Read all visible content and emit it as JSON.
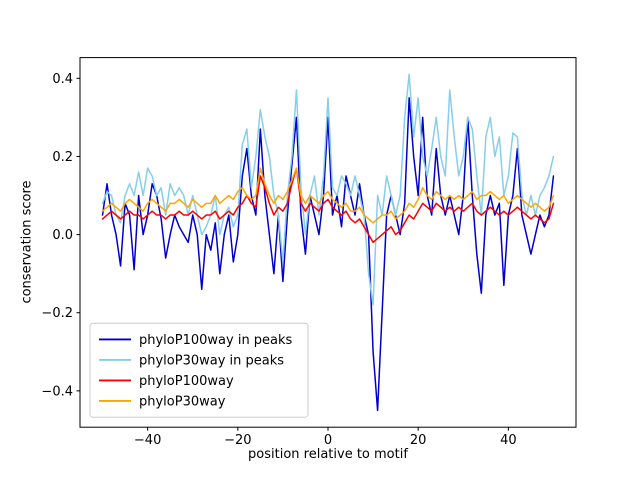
{
  "chart_data": {
    "type": "line",
    "title": "",
    "xlabel": "position relative to motif",
    "ylabel": "conservation score",
    "xlim": [
      -55,
      55
    ],
    "ylim": [
      -0.493,
      0.453
    ],
    "grid": false,
    "legend_position": "lower left",
    "xticks": [
      -40,
      -20,
      0,
      20,
      40
    ],
    "xtick_labels": [
      "−40",
      "−20",
      "0",
      "20",
      "40"
    ],
    "yticks": [
      -0.4,
      -0.2,
      0.0,
      0.2,
      0.4
    ],
    "ytick_labels": [
      "−0.4",
      "−0.2",
      "0.0",
      "0.2",
      "0.4"
    ],
    "x": [
      -50,
      -49,
      -48,
      -47,
      -46,
      -45,
      -44,
      -43,
      -42,
      -41,
      -40,
      -39,
      -38,
      -37,
      -36,
      -35,
      -34,
      -33,
      -32,
      -31,
      -30,
      -29,
      -28,
      -27,
      -26,
      -25,
      -24,
      -23,
      -22,
      -21,
      -20,
      -19,
      -18,
      -17,
      -16,
      -15,
      -14,
      -13,
      -12,
      -11,
      -10,
      -9,
      -8,
      -7,
      -6,
      -5,
      -4,
      -3,
      -2,
      -1,
      0,
      1,
      2,
      3,
      4,
      5,
      6,
      7,
      8,
      9,
      10,
      11,
      12,
      13,
      14,
      15,
      16,
      17,
      18,
      19,
      20,
      21,
      22,
      23,
      24,
      25,
      26,
      27,
      28,
      29,
      30,
      31,
      32,
      33,
      34,
      35,
      36,
      37,
      38,
      39,
      40,
      41,
      42,
      43,
      44,
      45,
      46,
      47,
      48,
      49,
      50
    ],
    "series": [
      {
        "name": "phyloP100way in peaks",
        "color": "#0000cd",
        "values": [
          0.05,
          0.13,
          0.05,
          0.0,
          -0.08,
          0.08,
          0.05,
          -0.09,
          0.1,
          0.0,
          0.05,
          0.13,
          0.1,
          0.04,
          -0.06,
          0.0,
          0.05,
          0.02,
          0.0,
          -0.02,
          0.05,
          0.0,
          -0.14,
          0.0,
          -0.04,
          0.03,
          -0.1,
          0.0,
          0.05,
          -0.07,
          0.0,
          0.15,
          0.22,
          0.1,
          0.05,
          0.27,
          0.1,
          0.0,
          -0.1,
          0.05,
          -0.12,
          0.05,
          0.18,
          0.3,
          0.05,
          -0.05,
          0.1,
          0.05,
          0.0,
          0.1,
          0.3,
          0.05,
          0.1,
          0.02,
          0.15,
          0.1,
          0.05,
          0.13,
          0.05,
          0.0,
          -0.3,
          -0.45,
          -0.2,
          0.05,
          0.1,
          0.05,
          0.0,
          0.08,
          0.35,
          0.2,
          0.1,
          0.3,
          0.1,
          0.05,
          0.22,
          0.1,
          0.05,
          0.1,
          0.05,
          0.0,
          0.1,
          0.3,
          0.1,
          -0.05,
          -0.15,
          0.05,
          0.1,
          0.05,
          0.08,
          -0.13,
          0.05,
          0.1,
          0.22,
          0.05,
          0.0,
          -0.05,
          0.0,
          0.05,
          0.02,
          0.05,
          0.15
        ]
      },
      {
        "name": "phyloP30way in peaks",
        "color": "#87ceeb",
        "values": [
          0.08,
          0.11,
          0.1,
          0.05,
          0.03,
          0.1,
          0.13,
          0.1,
          0.16,
          0.1,
          0.17,
          0.15,
          0.1,
          0.12,
          0.05,
          0.13,
          0.1,
          0.12,
          0.1,
          0.05,
          0.1,
          0.05,
          0.0,
          0.02,
          0.05,
          0.1,
          0.0,
          0.05,
          0.07,
          0.02,
          0.05,
          0.23,
          0.27,
          0.12,
          0.2,
          0.32,
          0.25,
          0.2,
          0.1,
          0.05,
          -0.07,
          0.1,
          0.2,
          0.37,
          0.12,
          0.0,
          0.1,
          0.15,
          0.05,
          0.15,
          0.35,
          0.12,
          0.1,
          0.15,
          0.13,
          0.1,
          0.15,
          0.1,
          0.05,
          -0.1,
          -0.18,
          0.1,
          0.05,
          0.15,
          0.1,
          0.05,
          0.1,
          0.3,
          0.41,
          0.25,
          0.35,
          0.2,
          0.15,
          0.22,
          0.3,
          0.2,
          0.15,
          0.37,
          0.25,
          0.15,
          0.2,
          0.3,
          0.27,
          0.15,
          0.05,
          0.25,
          0.3,
          0.2,
          0.25,
          0.1,
          0.15,
          0.26,
          0.25,
          0.1,
          0.05,
          0.1,
          0.05,
          0.1,
          0.12,
          0.15,
          0.2
        ]
      },
      {
        "name": "phyloP100way",
        "color": "#ff0000",
        "values": [
          0.04,
          0.05,
          0.06,
          0.05,
          0.04,
          0.05,
          0.06,
          0.05,
          0.05,
          0.04,
          0.05,
          0.06,
          0.05,
          0.05,
          0.04,
          0.05,
          0.05,
          0.06,
          0.05,
          0.05,
          0.06,
          0.05,
          0.04,
          0.05,
          0.05,
          0.06,
          0.04,
          0.05,
          0.06,
          0.05,
          0.07,
          0.08,
          0.1,
          0.08,
          0.07,
          0.15,
          0.12,
          0.08,
          0.05,
          0.07,
          0.06,
          0.08,
          0.13,
          0.17,
          0.08,
          0.06,
          0.08,
          0.07,
          0.06,
          0.08,
          0.09,
          0.07,
          0.06,
          0.05,
          0.06,
          0.04,
          0.03,
          0.04,
          0.02,
          0.0,
          -0.02,
          -0.01,
          0.0,
          0.01,
          0.02,
          0.0,
          0.01,
          0.03,
          0.05,
          0.04,
          0.06,
          0.08,
          0.07,
          0.06,
          0.08,
          0.07,
          0.06,
          0.07,
          0.06,
          0.07,
          0.06,
          0.07,
          0.08,
          0.06,
          0.05,
          0.06,
          0.07,
          0.06,
          0.05,
          0.06,
          0.05,
          0.06,
          0.07,
          0.06,
          0.05,
          0.04,
          0.05,
          0.04,
          0.03,
          0.04,
          0.08
        ]
      },
      {
        "name": "phyloP30way",
        "color": "#ffa500",
        "values": [
          0.06,
          0.07,
          0.08,
          0.07,
          0.06,
          0.08,
          0.09,
          0.08,
          0.07,
          0.06,
          0.08,
          0.09,
          0.08,
          0.07,
          0.06,
          0.08,
          0.08,
          0.09,
          0.08,
          0.07,
          0.09,
          0.08,
          0.07,
          0.08,
          0.08,
          0.1,
          0.08,
          0.09,
          0.1,
          0.09,
          0.11,
          0.12,
          0.1,
          0.09,
          0.1,
          0.17,
          0.13,
          0.1,
          0.08,
          0.1,
          0.09,
          0.11,
          0.14,
          0.17,
          0.1,
          0.08,
          0.1,
          0.09,
          0.08,
          0.1,
          0.11,
          0.09,
          0.08,
          0.07,
          0.08,
          0.06,
          0.06,
          0.07,
          0.05,
          0.04,
          0.03,
          0.04,
          0.05,
          0.05,
          0.06,
          0.04,
          0.05,
          0.06,
          0.08,
          0.07,
          0.09,
          0.12,
          0.1,
          0.09,
          0.11,
          0.1,
          0.09,
          0.1,
          0.09,
          0.1,
          0.09,
          0.1,
          0.11,
          0.09,
          0.1,
          0.1,
          0.11,
          0.1,
          0.09,
          0.1,
          0.08,
          0.09,
          0.1,
          0.09,
          0.08,
          0.07,
          0.08,
          0.07,
          0.06,
          0.07,
          0.1
        ]
      }
    ]
  }
}
